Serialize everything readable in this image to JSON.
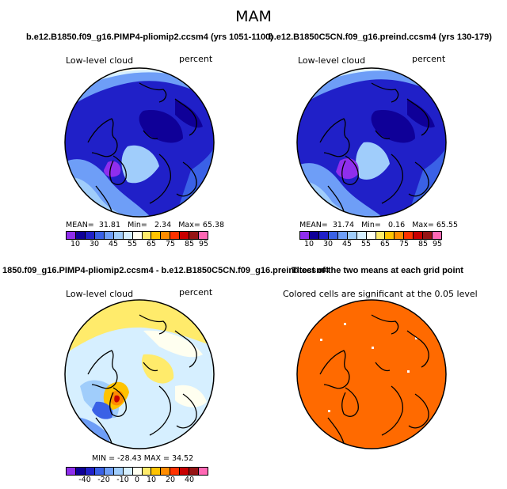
{
  "season": "MAM",
  "colors": {
    "abs": [
      "#8f2eed",
      "#0f0098",
      "#2020c8",
      "#3a61e6",
      "#6e9ef7",
      "#a0cdfb",
      "#d6efff",
      "#fffff0",
      "#ffeb6b",
      "#ffc300",
      "#ff8c00",
      "#ff3200",
      "#c80000",
      "#961414",
      "#ff68b4"
    ],
    "diff": [
      "#8f2eed",
      "#0f0098",
      "#2020c8",
      "#3a61e6",
      "#6e9ef7",
      "#a0cdfb",
      "#d6efff",
      "#fffff0",
      "#ffeb6b",
      "#ffc300",
      "#ff8c00",
      "#ff3200",
      "#c80000",
      "#961414",
      "#ff68b4"
    ],
    "sig": "#ff6a00"
  },
  "panels": {
    "p1": {
      "title": "b.e12.B1850.f09_g16.PIMP4-pliomip2.ccsm4 (yrs 1051-1100)",
      "label": "Low-level cloud",
      "units": "percent",
      "stats": {
        "mean_label": "MEAN=",
        "mean": "31.81",
        "min_label": "Min=",
        "min": "2.34",
        "max_label": "Max=",
        "max": "65.38"
      },
      "ticks": [
        "10",
        "30",
        "45",
        "55",
        "65",
        "75",
        "85",
        "95"
      ]
    },
    "p2": {
      "title": "b.e12.B1850C5CN.f09_g16.preind.ccsm4 (yrs 130-179)",
      "label": "Low-level cloud",
      "units": "percent",
      "stats": {
        "mean_label": "MEAN=",
        "mean": "31.74",
        "min_label": "Min=",
        "min": "0.16",
        "max_label": "Max=",
        "max": "65.55"
      },
      "ticks": [
        "10",
        "30",
        "45",
        "55",
        "65",
        "75",
        "85",
        "95"
      ]
    },
    "p3": {
      "title": "1850.f09_g16.PIMP4-pliomip2.ccsm4 - b.e12.B1850C5CN.f09_g16.preind.ccsm4",
      "label": "Low-level cloud",
      "units": "percent",
      "stats_text": "MIN = -28.43  MAX = 34.52",
      "ticks": [
        "-40",
        "-20",
        "-10",
        "0",
        "10",
        "20",
        "40"
      ]
    },
    "p4": {
      "title": "T-test of the two means at each grid point",
      "label": "Colored cells are significant at the 0.05 level"
    }
  }
}
